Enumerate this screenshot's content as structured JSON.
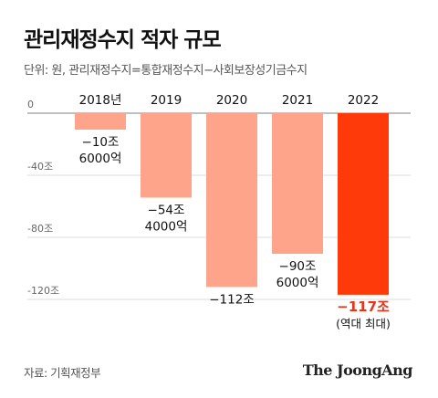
{
  "header": {
    "title": "관리재정수지 적자 규모",
    "unit": "단위: 원, 관리재정수지=통합재정수지−사회보장성기금수지"
  },
  "footer": {
    "source": "자료: 기획재정부",
    "brand": "The JoongAng"
  },
  "colors": {
    "bar": "#fda48a",
    "highlight": "#ff3a0a",
    "grid": "#dcdcdc"
  },
  "chart_data": {
    "type": "bar",
    "categories": [
      "2018년",
      "2019",
      "2020",
      "2021",
      "2022"
    ],
    "values": [
      -10.6,
      -54.4,
      -112.0,
      -90.6,
      -117.0
    ],
    "value_unit": "조 원",
    "labels": [
      [
        "−10조",
        "6000억"
      ],
      [
        "−54조",
        "4000억"
      ],
      [
        "−112조"
      ],
      [
        "−90조",
        "6000억"
      ],
      [
        "−117조"
      ]
    ],
    "highlight_index": 4,
    "highlight_note": "(역대 최대)",
    "yticks": [
      0,
      -40,
      -80,
      -120
    ],
    "ytick_labels": [
      "0",
      "-40조",
      "-80조",
      "-120조"
    ],
    "ylim": [
      -120,
      0
    ],
    "grid": true
  }
}
